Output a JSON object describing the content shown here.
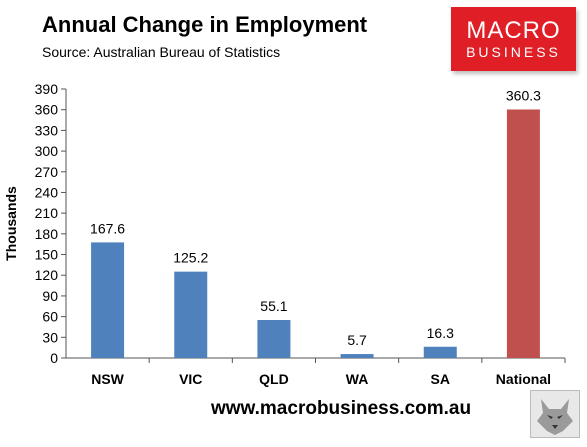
{
  "header": {
    "title": "Annual Change in Employment",
    "subtitle": "Source: Australian Bureau of Statistics"
  },
  "logo": {
    "line1": "MACRO",
    "line2": "BUSINESS"
  },
  "footer": {
    "url": "www.macrobusiness.com.au"
  },
  "colors": {
    "bar": "#4f81bd",
    "national": "#c0504d",
    "logo": "#e01e25"
  },
  "chart_data": {
    "type": "bar",
    "title": "Annual Change in Employment",
    "ylabel": "Thousands",
    "categories": [
      "NSW",
      "VIC",
      "QLD",
      "WA",
      "SA",
      "National"
    ],
    "values": [
      167.6,
      125.2,
      55.1,
      5.7,
      16.3,
      360.3
    ],
    "value_labels": [
      "167.6",
      "125.2",
      "55.1",
      "5.7",
      "16.3",
      "360.3"
    ],
    "ylim": [
      0,
      390
    ],
    "yticks": [
      0,
      30,
      60,
      90,
      120,
      150,
      180,
      210,
      240,
      270,
      300,
      330,
      360,
      390
    ],
    "grid": false,
    "legend": "none"
  }
}
